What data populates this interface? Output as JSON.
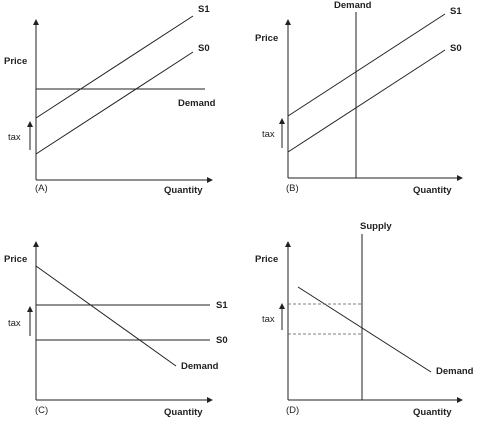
{
  "panels": [
    {
      "id": "A",
      "panel_label": "(A)",
      "y_axis_label": "Price",
      "x_axis_label": "Quantity",
      "tax_label": "tax",
      "curve_labels": [
        "S1",
        "S0",
        "Demand"
      ]
    },
    {
      "id": "B",
      "panel_label": "(B)",
      "y_axis_label": "Price",
      "x_axis_label": "Quantity",
      "tax_label": "tax",
      "curve_labels": [
        "Demand",
        "S1",
        "S0"
      ]
    },
    {
      "id": "C",
      "panel_label": "(C)",
      "y_axis_label": "Price",
      "x_axis_label": "Quantity",
      "tax_label": "tax",
      "curve_labels": [
        "S1",
        "S0",
        "Demand"
      ]
    },
    {
      "id": "D",
      "panel_label": "(D)",
      "y_axis_label": "Price",
      "x_axis_label": "Quantity",
      "tax_label": "tax",
      "curve_labels": [
        "Supply",
        "Demand"
      ]
    }
  ],
  "colors": {
    "ink": "#222222",
    "dashed": "#555555",
    "background": "#ffffff"
  }
}
